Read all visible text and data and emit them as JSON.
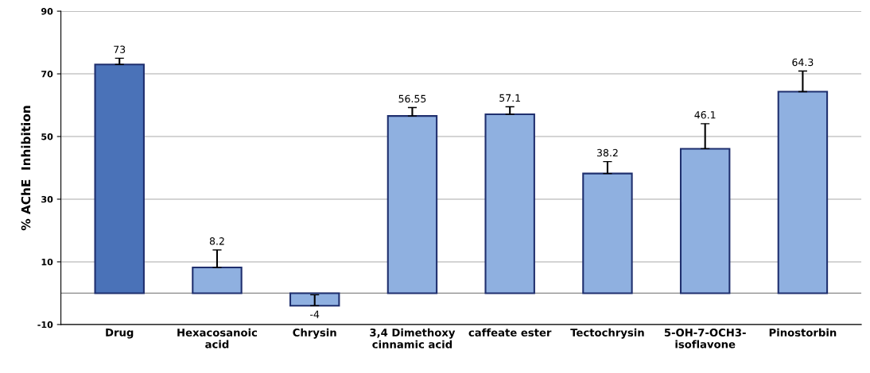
{
  "chart_data": {
    "type": "bar",
    "ylabel": "% AChE  Inhibition",
    "categories": [
      "Drug",
      "Hexacosanoic\nacid",
      "Chrysin",
      "3,4 Dimethoxy\ncinnamic acid",
      "caffeate ester",
      "Tectochrysin",
      "5-OH-7-OCH3-\nisoflavone",
      "Pinostorbin"
    ],
    "values": [
      73,
      8.2,
      -4,
      56.55,
      57.1,
      38.2,
      46.1,
      64.3
    ],
    "errors": [
      2,
      5.6,
      3.5,
      2.7,
      2.4,
      3.8,
      8,
      6.6
    ],
    "colors": [
      "#4a72b8",
      "#8fb0e0",
      "#8fb0e0",
      "#8fb0e0",
      "#8fb0e0",
      "#8fb0e0",
      "#8fb0e0",
      "#8fb0e0"
    ],
    "ylim": [
      -10,
      90
    ],
    "yticks": [
      -10,
      10,
      30,
      50,
      70,
      90
    ],
    "grid": "y",
    "data_labels": true
  }
}
